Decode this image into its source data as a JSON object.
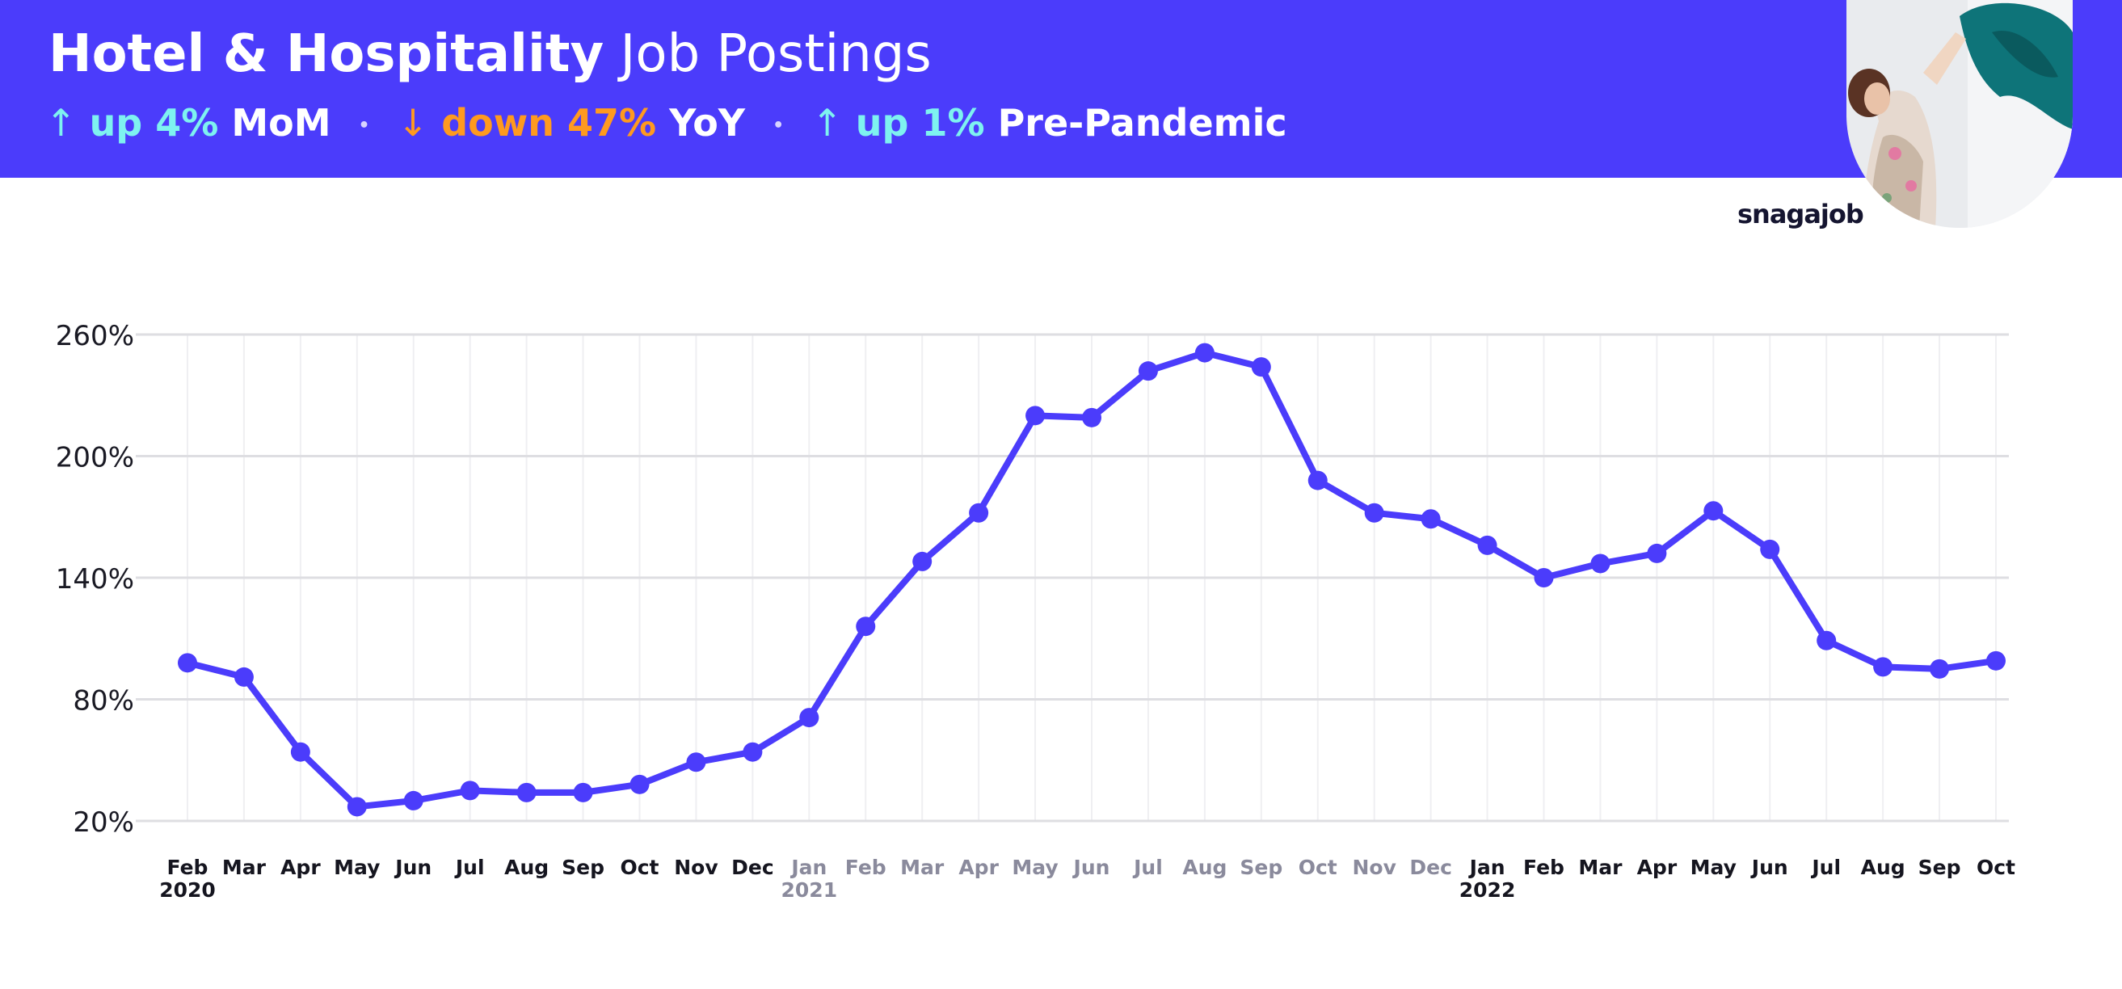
{
  "header": {
    "title_bold": "Hotel & Hospitality",
    "title_rest": "Job Postings",
    "stats": [
      {
        "arrow": "↑",
        "value": "up 4%",
        "label": "MoM",
        "tone": "up"
      },
      {
        "arrow": "↓",
        "value": "down 47%",
        "label": "YoY",
        "tone": "down"
      },
      {
        "arrow": "↑",
        "value": "up 1%",
        "label": "Pre-Pandemic",
        "tone": "up"
      }
    ],
    "separator": "•",
    "brand": "snagajob",
    "photo_icon": "hotel-worker-photo"
  },
  "colors": {
    "header_bg": "#4b3cfb",
    "line": "#4b3cfb",
    "up": "#7ef2f0",
    "down": "#ff9a1f",
    "year_2021": "#8a8a9c",
    "year_default": "#15151f"
  },
  "chart_data": {
    "type": "line",
    "title": "",
    "xlabel": "",
    "ylabel": "",
    "ylim": [
      20,
      260
    ],
    "yticks": [
      20,
      80,
      140,
      200,
      260
    ],
    "ytick_labels": [
      "20%",
      "80%",
      "140%",
      "200%",
      "260%"
    ],
    "grid": true,
    "categories": [
      "Feb",
      "Mar",
      "Apr",
      "May",
      "Jun",
      "Jul",
      "Aug",
      "Sep",
      "Oct",
      "Nov",
      "Dec",
      "Jan",
      "Feb",
      "Mar",
      "Apr",
      "May",
      "Jun",
      "Jul",
      "Aug",
      "Sep",
      "Oct",
      "Nov",
      "Dec",
      "Jan",
      "Feb",
      "Mar",
      "Apr",
      "May",
      "Jun",
      "Jul",
      "Aug",
      "Sep",
      "Oct"
    ],
    "year_labels": [
      {
        "index": 0,
        "label": "2020"
      },
      {
        "index": 11,
        "label": "2021"
      },
      {
        "index": 23,
        "label": "2022"
      }
    ],
    "muted_range": [
      11,
      22
    ],
    "series": [
      {
        "values": [
          98,
          91,
          54,
          27,
          30,
          35,
          34,
          34,
          38,
          49,
          54,
          71,
          116,
          148,
          172,
          220,
          219,
          242,
          251,
          244,
          188,
          172,
          169,
          156,
          140,
          147,
          152,
          173,
          154,
          109,
          96,
          95,
          99
        ]
      }
    ]
  }
}
